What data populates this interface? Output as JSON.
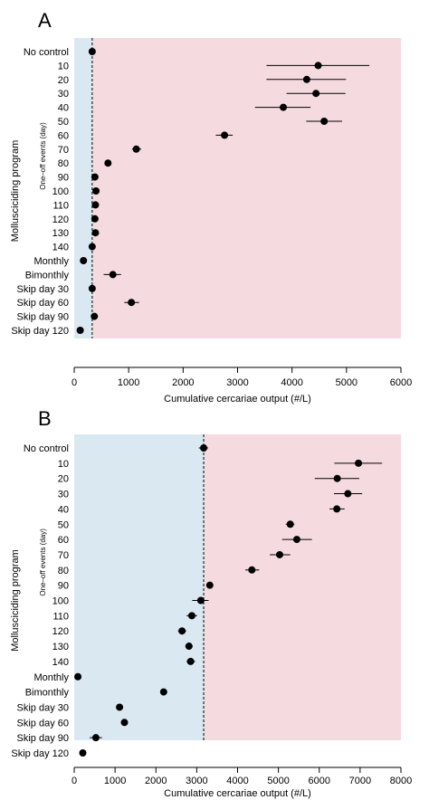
{
  "chart_data": [
    {
      "type": "scatter",
      "panel_label": "A",
      "xlabel": "Cumulative cercariae output (#/L)",
      "ylabel": "Mollusciciding program",
      "group_label": "One–off events (day)",
      "xlim": [
        0,
        6000
      ],
      "xticks": [
        0,
        1000,
        2000,
        3000,
        4000,
        5000,
        6000
      ],
      "reference_x": 330,
      "region_colors": {
        "below_reference": "#dae9f1",
        "above_reference": "#f5dbe0"
      },
      "categories": [
        "No control",
        "10",
        "20",
        "30",
        "40",
        "50",
        "60",
        "70",
        "80",
        "90",
        "100",
        "110",
        "120",
        "130",
        "140",
        "Monthly",
        "Bimonthly",
        "Skip day 30",
        "Skip day 60",
        "Skip day 90",
        "Skip day 120"
      ],
      "values": [
        330,
        4480,
        4270,
        4440,
        3840,
        4590,
        2760,
        1140,
        620,
        380,
        400,
        390,
        380,
        390,
        330,
        170,
        710,
        330,
        1050,
        370,
        110
      ],
      "ci_low": [
        290,
        3530,
        3530,
        3900,
        3320,
        4260,
        2600,
        1060,
        560,
        350,
        370,
        360,
        350,
        360,
        300,
        130,
        540,
        280,
        920,
        320,
        90
      ],
      "ci_high": [
        380,
        5420,
        4990,
        4980,
        4340,
        4920,
        2910,
        1230,
        680,
        420,
        440,
        430,
        420,
        430,
        370,
        210,
        860,
        390,
        1190,
        430,
        140
      ]
    },
    {
      "type": "scatter",
      "panel_label": "B",
      "xlabel": "Cumulative cercariae output (#/L)",
      "ylabel": "Mollusciciding program",
      "group_label": "One–off events (day)",
      "xlim": [
        0,
        8000
      ],
      "xticks": [
        0,
        1000,
        2000,
        3000,
        4000,
        5000,
        6000,
        7000,
        8000
      ],
      "reference_x": 3170,
      "region_colors": {
        "below_reference": "#dae9f1",
        "above_reference": "#f5dbe0"
      },
      "categories": [
        "No control",
        "10",
        "20",
        "30",
        "40",
        "50",
        "60",
        "70",
        "80",
        "90",
        "100",
        "110",
        "120",
        "130",
        "140",
        "Monthly",
        "Bimonthly",
        "Skip day 30",
        "Skip day 60",
        "Skip day 90",
        "Skip day 120"
      ],
      "values": [
        3170,
        6960,
        6440,
        6700,
        6430,
        5290,
        5450,
        5030,
        4350,
        3320,
        3100,
        2880,
        2640,
        2810,
        2850,
        90,
        2190,
        1110,
        1230,
        530,
        210
      ],
      "ci_low": [
        3050,
        6370,
        5890,
        6360,
        6250,
        5180,
        5090,
        4790,
        4190,
        3250,
        2890,
        2750,
        2540,
        2720,
        2750,
        60,
        2110,
        1030,
        1150,
        380,
        170
      ],
      "ci_high": [
        3280,
        7540,
        6980,
        7050,
        6620,
        5390,
        5820,
        5290,
        4530,
        3390,
        3290,
        3010,
        2740,
        2900,
        2960,
        120,
        2270,
        1190,
        1310,
        680,
        250
      ]
    }
  ]
}
